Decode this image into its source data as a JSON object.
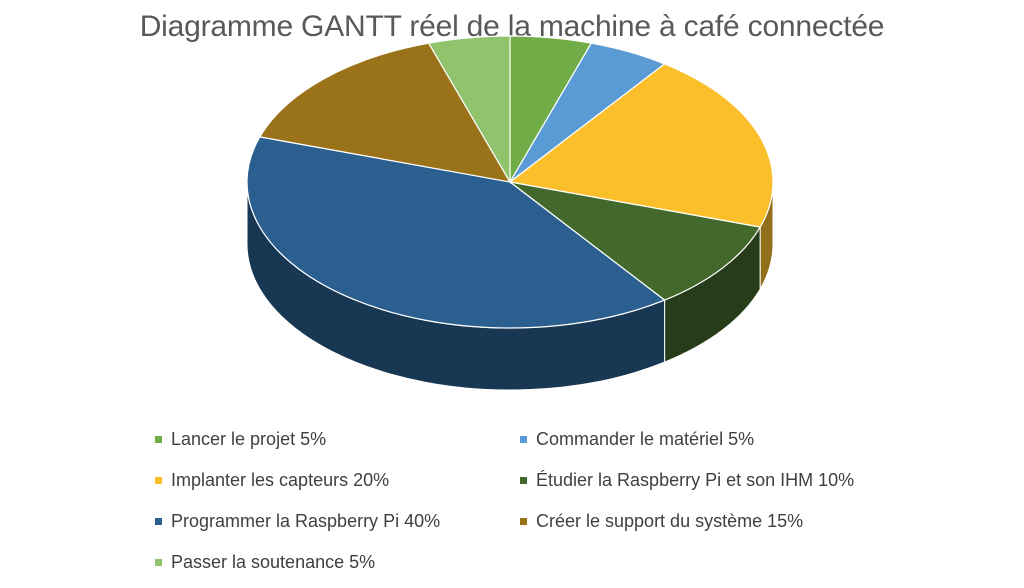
{
  "chart_data": {
    "type": "pie",
    "title": "Diagramme GANTT réel de la machine à café connectée",
    "legend_position": "bottom",
    "three_d": true,
    "slices": [
      {
        "label": "Lancer le projet 5%",
        "value": 5,
        "color": "#70AD47"
      },
      {
        "label": "Commander le matériel 5%",
        "value": 5,
        "color": "#5B9BD5"
      },
      {
        "label": "Implanter les capteurs 20%",
        "value": 20,
        "color": "#FBBF2C"
      },
      {
        "label": "Étudier la Raspberry Pi et son IHM 10%",
        "value": 10,
        "color": "#43682B"
      },
      {
        "label": "Programmer la Raspberry Pi 40%",
        "value": 40,
        "color": "#2A5F8F"
      },
      {
        "label": "Créer le support du système 15%",
        "value": 15,
        "color": "#9A7219"
      },
      {
        "label": "Passer la soutenance 5%",
        "value": 5,
        "color": "#90C36B"
      }
    ]
  }
}
